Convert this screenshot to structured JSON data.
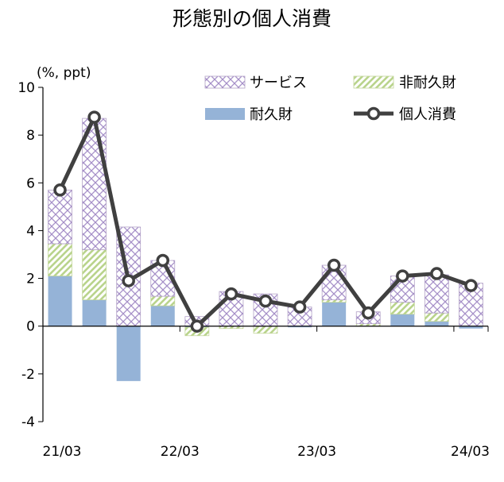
{
  "chart_data": {
    "type": "bar",
    "title": "形態別の個人消費",
    "ylabel": "(%, ppt)",
    "ylim": [
      -4,
      10
    ],
    "yticks": [
      10,
      8,
      6,
      4,
      2,
      0,
      -2,
      -4
    ],
    "x_tick_labels": [
      "21/03",
      "22/03",
      "23/03",
      "24/03"
    ],
    "x_tick_positions": [
      "2021Q1",
      "2022Q1",
      "2023Q1",
      "2024Q1"
    ],
    "categories": [
      "2021Q1",
      "2021Q2",
      "2021Q3",
      "2021Q4",
      "2022Q1",
      "2022Q2",
      "2022Q3",
      "2022Q4",
      "2023Q1",
      "2023Q2",
      "2023Q3",
      "2023Q4",
      "2024Q1"
    ],
    "stacked": true,
    "legend_position": "top-right",
    "series": [
      {
        "name": "耐久財",
        "kind": "bar",
        "pattern": "solid",
        "color": "#95b3d7",
        "values": [
          2.1,
          1.1,
          -2.3,
          0.85,
          -0.05,
          0.0,
          0.0,
          -0.05,
          1.0,
          0.0,
          0.5,
          0.2,
          -0.1
        ]
      },
      {
        "name": "非耐久財",
        "kind": "bar",
        "pattern": "diagonal",
        "color": "#c3d69b",
        "values": [
          1.35,
          2.1,
          0.0,
          0.4,
          -0.35,
          -0.1,
          -0.3,
          0.0,
          0.1,
          0.1,
          0.5,
          0.35,
          0.0
        ]
      },
      {
        "name": "サービス",
        "kind": "bar",
        "pattern": "crosshatch",
        "color": "#b3a2c7",
        "values": [
          2.25,
          5.5,
          4.15,
          1.5,
          0.4,
          1.45,
          1.35,
          0.8,
          1.45,
          0.5,
          1.1,
          1.6,
          1.8
        ]
      },
      {
        "name": "個人消費",
        "kind": "line",
        "color": "#404040",
        "values": [
          5.7,
          8.75,
          1.9,
          2.75,
          0.0,
          1.35,
          1.05,
          0.8,
          2.55,
          0.55,
          2.1,
          2.2,
          1.7
        ]
      }
    ]
  }
}
